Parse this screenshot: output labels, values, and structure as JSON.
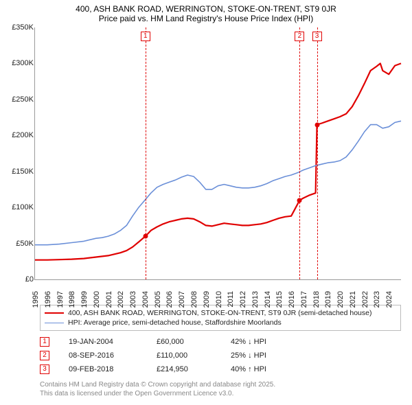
{
  "titles": {
    "line1": "400, ASH BANK ROAD, WERRINGTON, STOKE-ON-TRENT, ST9 0JR",
    "line2": "Price paid vs. HM Land Registry's House Price Index (HPI)"
  },
  "chart": {
    "type": "line",
    "xlim": [
      1995,
      2025
    ],
    "ylim": [
      0,
      350000
    ],
    "ytick_step": 50000,
    "ytick_labels": [
      "£0",
      "£50K",
      "£100K",
      "£150K",
      "£200K",
      "£250K",
      "£300K",
      "£350K"
    ],
    "xtick_labels": [
      "1995",
      "1996",
      "1997",
      "1998",
      "1999",
      "2000",
      "2001",
      "2002",
      "2003",
      "2004",
      "2005",
      "2006",
      "2007",
      "2008",
      "2009",
      "2010",
      "2011",
      "2012",
      "2013",
      "2014",
      "2015",
      "2016",
      "2017",
      "2018",
      "2019",
      "2020",
      "2021",
      "2022",
      "2023",
      "2024"
    ],
    "background_color": "#ffffff",
    "axis_color": "#999999",
    "series": [
      {
        "name": "price_paid",
        "color": "#e00000",
        "width": 2.2,
        "data": [
          [
            1995.0,
            27000
          ],
          [
            1996.0,
            27000
          ],
          [
            1997.0,
            27500
          ],
          [
            1998.0,
            28000
          ],
          [
            1999.0,
            29000
          ],
          [
            2000.0,
            31000
          ],
          [
            2001.0,
            33000
          ],
          [
            2002.0,
            37000
          ],
          [
            2002.5,
            40000
          ],
          [
            2003.0,
            45000
          ],
          [
            2003.5,
            52000
          ],
          [
            2004.05,
            60000
          ],
          [
            2004.5,
            68000
          ],
          [
            2005.0,
            73000
          ],
          [
            2005.5,
            77000
          ],
          [
            2006.0,
            80000
          ],
          [
            2006.5,
            82000
          ],
          [
            2007.0,
            84000
          ],
          [
            2007.5,
            85000
          ],
          [
            2008.0,
            84000
          ],
          [
            2008.5,
            80000
          ],
          [
            2009.0,
            75000
          ],
          [
            2009.5,
            74000
          ],
          [
            2010.0,
            76000
          ],
          [
            2010.5,
            78000
          ],
          [
            2011.0,
            77000
          ],
          [
            2011.5,
            76000
          ],
          [
            2012.0,
            75000
          ],
          [
            2012.5,
            75000
          ],
          [
            2013.0,
            76000
          ],
          [
            2013.5,
            77000
          ],
          [
            2014.0,
            79000
          ],
          [
            2014.5,
            82000
          ],
          [
            2015.0,
            85000
          ],
          [
            2015.5,
            87000
          ],
          [
            2016.0,
            88000
          ],
          [
            2016.69,
            110000
          ],
          [
            2017.0,
            113000
          ],
          [
            2017.5,
            117000
          ],
          [
            2018.0,
            120000
          ],
          [
            2018.11,
            214950
          ],
          [
            2018.5,
            217000
          ],
          [
            2019.0,
            220000
          ],
          [
            2019.5,
            223000
          ],
          [
            2020.0,
            226000
          ],
          [
            2020.5,
            230000
          ],
          [
            2021.0,
            240000
          ],
          [
            2021.5,
            255000
          ],
          [
            2022.0,
            272000
          ],
          [
            2022.5,
            290000
          ],
          [
            2023.0,
            296000
          ],
          [
            2023.3,
            300000
          ],
          [
            2023.5,
            290000
          ],
          [
            2024.0,
            285000
          ],
          [
            2024.5,
            297000
          ],
          [
            2025.0,
            300000
          ]
        ],
        "sale_points": [
          {
            "x": 2004.05,
            "y": 60000
          },
          {
            "x": 2016.69,
            "y": 110000
          },
          {
            "x": 2018.11,
            "y": 214950
          }
        ]
      },
      {
        "name": "hpi",
        "color": "#6a8fd8",
        "width": 1.6,
        "data": [
          [
            1995.0,
            48000
          ],
          [
            1996.0,
            48000
          ],
          [
            1997.0,
            49000
          ],
          [
            1998.0,
            51000
          ],
          [
            1999.0,
            53000
          ],
          [
            2000.0,
            57000
          ],
          [
            2000.5,
            58000
          ],
          [
            2001.0,
            60000
          ],
          [
            2001.5,
            63000
          ],
          [
            2002.0,
            68000
          ],
          [
            2002.5,
            75000
          ],
          [
            2003.0,
            88000
          ],
          [
            2003.5,
            100000
          ],
          [
            2004.0,
            110000
          ],
          [
            2004.5,
            120000
          ],
          [
            2005.0,
            128000
          ],
          [
            2005.5,
            132000
          ],
          [
            2006.0,
            135000
          ],
          [
            2006.5,
            138000
          ],
          [
            2007.0,
            142000
          ],
          [
            2007.5,
            145000
          ],
          [
            2008.0,
            143000
          ],
          [
            2008.5,
            135000
          ],
          [
            2009.0,
            125000
          ],
          [
            2009.5,
            125000
          ],
          [
            2010.0,
            130000
          ],
          [
            2010.5,
            132000
          ],
          [
            2011.0,
            130000
          ],
          [
            2011.5,
            128000
          ],
          [
            2012.0,
            127000
          ],
          [
            2012.5,
            127000
          ],
          [
            2013.0,
            128000
          ],
          [
            2013.5,
            130000
          ],
          [
            2014.0,
            133000
          ],
          [
            2014.5,
            137000
          ],
          [
            2015.0,
            140000
          ],
          [
            2015.5,
            143000
          ],
          [
            2016.0,
            145000
          ],
          [
            2016.5,
            148000
          ],
          [
            2017.0,
            152000
          ],
          [
            2017.5,
            155000
          ],
          [
            2018.0,
            158000
          ],
          [
            2018.5,
            160000
          ],
          [
            2019.0,
            162000
          ],
          [
            2019.5,
            163000
          ],
          [
            2020.0,
            165000
          ],
          [
            2020.5,
            170000
          ],
          [
            2021.0,
            180000
          ],
          [
            2021.5,
            192000
          ],
          [
            2022.0,
            205000
          ],
          [
            2022.5,
            215000
          ],
          [
            2023.0,
            215000
          ],
          [
            2023.5,
            210000
          ],
          [
            2024.0,
            212000
          ],
          [
            2024.5,
            218000
          ],
          [
            2025.0,
            220000
          ]
        ]
      }
    ],
    "markers": [
      {
        "n": "1",
        "x": 2004.05
      },
      {
        "n": "2",
        "x": 2016.69
      },
      {
        "n": "3",
        "x": 2018.11
      }
    ]
  },
  "legend": [
    {
      "color": "#e00000",
      "width": 2.5,
      "label": "400, ASH BANK ROAD, WERRINGTON, STOKE-ON-TRENT, ST9 0JR (semi-detached house)"
    },
    {
      "color": "#6a8fd8",
      "width": 1.6,
      "label": "HPI: Average price, semi-detached house, Staffordshire Moorlands"
    }
  ],
  "events": [
    {
      "n": "1",
      "date": "19-JAN-2004",
      "price": "£60,000",
      "hpi": "42% ↓ HPI"
    },
    {
      "n": "2",
      "date": "08-SEP-2016",
      "price": "£110,000",
      "hpi": "25% ↓ HPI"
    },
    {
      "n": "3",
      "date": "09-FEB-2018",
      "price": "£214,950",
      "hpi": "40% ↑ HPI"
    }
  ],
  "footer": {
    "line1": "Contains HM Land Registry data © Crown copyright and database right 2025.",
    "line2": "This data is licensed under the Open Government Licence v3.0."
  }
}
